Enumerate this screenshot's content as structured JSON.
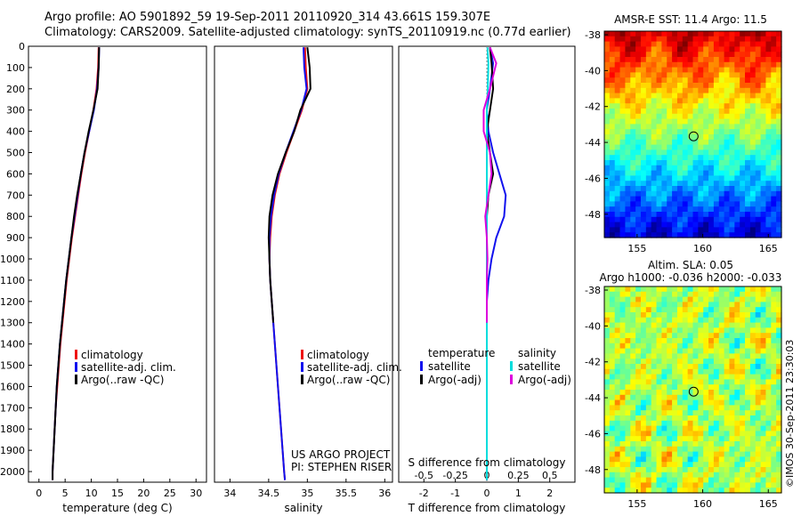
{
  "header": {
    "line1": "Argo profile: AO 5901892_59 19-Sep-2011 20110920_314 43.661S 159.307E",
    "line2": "Climatology: CARS2009. Satellite-adjusted climatology: synTS_20110919.nc (0.77d earlier)"
  },
  "colors": {
    "climatology": "#ee1111",
    "satellite": "#1111ee",
    "argo": "#000000",
    "salinity_satellite": "#00dddd",
    "salinity_argo": "#dd00dd"
  },
  "legend1": {
    "items": [
      {
        "label": "climatology",
        "color": "#ee1111"
      },
      {
        "label": "satellite-adj. clim.",
        "color": "#1111ee"
      },
      {
        "label": "Argo(..raw -QC)",
        "color": "#000000"
      }
    ]
  },
  "legend2": {
    "items": [
      {
        "label": "climatology",
        "color": "#ee1111"
      },
      {
        "label": "satellite-adj. clim.",
        "color": "#1111ee"
      },
      {
        "label": "Argo(..raw -QC)",
        "color": "#000000"
      }
    ]
  },
  "legend3": {
    "temp_head": "temperature",
    "sal_head": "salinity",
    "temp_items": [
      {
        "label": "satellite",
        "color": "#1111ee"
      },
      {
        "label": "Argo(-adj)",
        "color": "#000000"
      }
    ],
    "sal_items": [
      {
        "label": "satellite",
        "color": "#00dddd"
      },
      {
        "label": "Argo(-adj)",
        "color": "#dd00dd"
      }
    ]
  },
  "credits": {
    "line1": "US ARGO PROJECT",
    "line2": "PI: STEPHEN RISER"
  },
  "map1": {
    "title": "AMSR-E SST: 11.4 Argo: 11.5"
  },
  "map2": {
    "title1": "Altim. SLA: 0.05",
    "title2": "Argo h1000: -0.036 h2000: -0.033"
  },
  "timestamp": "©IMOS 30-Sep-2011 23:30:03",
  "chart_data": [
    {
      "type": "line",
      "xlabel": "temperature (deg C)",
      "ylabel": "",
      "xlim": [
        -2,
        32
      ],
      "ylim": [
        2050,
        0
      ],
      "xticks": [
        0,
        5,
        10,
        15,
        20,
        25,
        30
      ],
      "yticks": [
        0,
        100,
        200,
        300,
        400,
        500,
        600,
        700,
        800,
        900,
        1000,
        1100,
        1200,
        1300,
        1400,
        1500,
        1600,
        1700,
        1800,
        1900,
        2000
      ],
      "series": [
        {
          "name": "climatology",
          "color": "#ee1111",
          "x": [
            11.4,
            11.3,
            11.0,
            10.4,
            9.6,
            8.8,
            8.1,
            7.5,
            6.9,
            6.3,
            5.8,
            5.3,
            4.9,
            4.5,
            4.1,
            3.8,
            3.5,
            3.2,
            3.0,
            2.8,
            2.6,
            2.6
          ],
          "y": [
            5,
            100,
            200,
            300,
            400,
            500,
            600,
            700,
            800,
            900,
            1000,
            1100,
            1200,
            1300,
            1400,
            1500,
            1600,
            1700,
            1800,
            1900,
            2000,
            2040
          ]
        },
        {
          "name": "satellite-adj. clim.",
          "color": "#1111ee",
          "x": [
            11.5,
            11.4,
            11.1,
            10.5,
            9.6,
            8.7,
            8.0,
            7.4,
            6.8,
            6.2,
            5.7,
            5.2,
            4.8,
            4.4,
            4.0,
            3.7,
            3.4,
            3.2,
            3.0,
            2.8,
            2.6,
            2.6
          ],
          "y": [
            5,
            100,
            200,
            300,
            400,
            500,
            600,
            700,
            800,
            900,
            1000,
            1100,
            1200,
            1300,
            1400,
            1500,
            1600,
            1700,
            1800,
            1900,
            2000,
            2040
          ]
        },
        {
          "name": "Argo(..raw -QC)",
          "color": "#000000",
          "x": [
            11.5,
            11.4,
            11.2,
            10.4,
            9.5,
            8.7,
            8.0,
            7.3,
            6.7,
            6.2,
            5.7,
            5.2,
            4.8,
            4.4,
            4.0,
            3.7,
            3.4,
            3.2,
            3.0,
            2.8,
            2.6,
            2.6
          ],
          "y": [
            5,
            100,
            200,
            300,
            400,
            500,
            600,
            700,
            800,
            900,
            1000,
            1100,
            1200,
            1300,
            1400,
            1500,
            1600,
            1700,
            1800,
            1900,
            2000,
            2040
          ]
        }
      ]
    },
    {
      "type": "line",
      "xlabel": "salinity",
      "ylabel": "",
      "xlim": [
        33.8,
        36.1
      ],
      "ylim": [
        2050,
        0
      ],
      "xticks": [
        34,
        34.5,
        35,
        35.5,
        36
      ],
      "series": [
        {
          "name": "climatology",
          "color": "#ee1111",
          "x": [
            34.97,
            34.98,
            35.0,
            34.93,
            34.83,
            34.73,
            34.64,
            34.58,
            34.54,
            34.52,
            34.51,
            34.52,
            34.54,
            34.56,
            34.58,
            34.6,
            34.62,
            34.64,
            34.66,
            34.68,
            34.7,
            34.71
          ],
          "y": [
            5,
            100,
            200,
            300,
            400,
            500,
            600,
            700,
            800,
            900,
            1000,
            1100,
            1200,
            1300,
            1400,
            1500,
            1600,
            1700,
            1800,
            1900,
            2000,
            2040
          ]
        },
        {
          "name": "satellite-adj. clim.",
          "color": "#1111ee",
          "x": [
            34.95,
            34.96,
            34.99,
            34.92,
            34.82,
            34.72,
            34.63,
            34.57,
            34.53,
            34.51,
            34.51,
            34.52,
            34.54,
            34.56,
            34.58,
            34.6,
            34.62,
            34.64,
            34.66,
            34.68,
            34.7,
            34.71
          ],
          "y": [
            5,
            100,
            200,
            300,
            400,
            500,
            600,
            700,
            800,
            900,
            1000,
            1100,
            1200,
            1300,
            1400,
            1500,
            1600,
            1700,
            1800,
            1900,
            2000,
            2040
          ]
        },
        {
          "name": "Argo(..raw -QC)",
          "color": "#000000",
          "x": [
            35.0,
            35.03,
            35.04,
            34.91,
            34.83,
            34.72,
            34.62,
            34.55,
            34.51,
            34.5,
            34.51,
            34.52,
            34.54,
            34.56
          ],
          "y": [
            5,
            100,
            200,
            300,
            400,
            500,
            600,
            700,
            800,
            900,
            1000,
            1100,
            1200,
            1300
          ]
        }
      ]
    },
    {
      "type": "line",
      "xlabel": "T difference from climatology",
      "ylabel": "",
      "title": "S difference from climatology",
      "xlim": [
        -2.8,
        2.8
      ],
      "ylim": [
        2050,
        0
      ],
      "xticks": [
        -2,
        -1,
        0,
        1,
        2
      ],
      "top_ticks": [
        -0.5,
        -0.25,
        0,
        0.25,
        0.5
      ],
      "series": [
        {
          "name": "temperature satellite",
          "color": "#1111ee",
          "x": [
            0.1,
            0.2,
            0.1,
            0.0,
            0.05,
            0.2,
            0.4,
            0.6,
            0.55,
            0.3,
            0.15,
            0.05,
            0.0,
            0.0,
            0.0,
            0.0,
            0.0,
            0.0,
            0.0,
            0.0,
            0.0
          ],
          "y": [
            5,
            80,
            200,
            300,
            400,
            500,
            600,
            700,
            800,
            900,
            1000,
            1100,
            1200,
            1300,
            1400,
            1500,
            1600,
            1700,
            1800,
            1900,
            2040
          ]
        },
        {
          "name": "temperature Argo(-adj)",
          "color": "#000000",
          "x": [
            0.1,
            0.15,
            0.2,
            0.1,
            0.0,
            0.1,
            0.2,
            0.05,
            0.0,
            0.0,
            0.0,
            0.0,
            0.0,
            0.0
          ],
          "y": [
            5,
            80,
            200,
            300,
            400,
            500,
            600,
            700,
            800,
            900,
            1000,
            1100,
            1200,
            1300
          ]
        },
        {
          "name": "salinity satellite",
          "color": "#00dddd",
          "x": [
            0.02,
            0.05,
            0.03,
            0.0,
            0.0,
            0.0,
            0.0,
            0.0,
            0.0,
            0.0,
            0.0,
            0.0,
            0.0,
            0.0,
            0.0,
            0.0,
            0.0,
            0.0,
            0.0,
            0.0
          ],
          "y": [
            5,
            80,
            200,
            300,
            400,
            500,
            600,
            700,
            800,
            900,
            1000,
            1100,
            1200,
            1300,
            1400,
            1500,
            1600,
            1700,
            1800,
            2040
          ]
        },
        {
          "name": "salinity Argo(-adj)",
          "color": "#dd00dd",
          "x": [
            0.1,
            0.3,
            0.1,
            -0.1,
            -0.1,
            0.1,
            0.15,
            0.05,
            -0.05,
            0.0,
            0.02,
            0.0,
            0.0,
            0.0
          ],
          "y": [
            5,
            80,
            200,
            300,
            400,
            500,
            600,
            700,
            800,
            900,
            1000,
            1100,
            1200,
            1300
          ]
        }
      ]
    },
    {
      "type": "heatmap",
      "title": "AMSR-E SST: 11.4 Argo: 11.5",
      "xlim": [
        152.5,
        166
      ],
      "ylim": [
        -49.3,
        -37.8
      ],
      "xticks": [
        155,
        160,
        165
      ],
      "yticks": [
        -38,
        -40,
        -42,
        -44,
        -46,
        -48
      ],
      "marker": {
        "x": 159.307,
        "y": -43.661
      }
    },
    {
      "type": "heatmap",
      "title": "Altim. SLA: 0.05",
      "xlim": [
        152.5,
        166
      ],
      "ylim": [
        -49.3,
        -37.8
      ],
      "xticks": [
        155,
        160,
        165
      ],
      "yticks": [
        -38,
        -40,
        -42,
        -44,
        -46,
        -48
      ],
      "marker": {
        "x": 159.307,
        "y": -43.661
      }
    }
  ]
}
